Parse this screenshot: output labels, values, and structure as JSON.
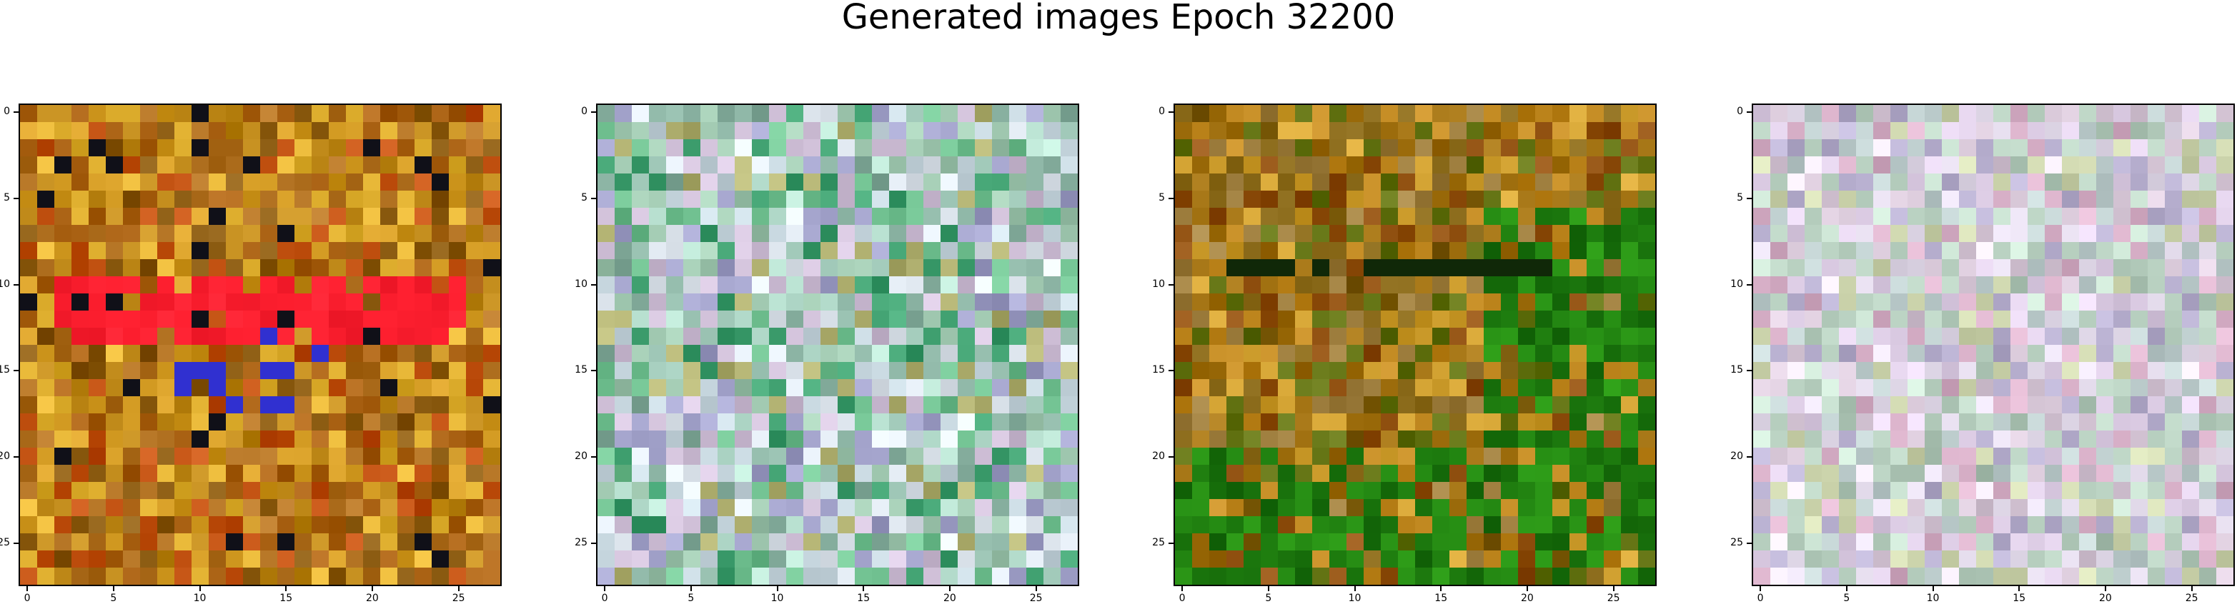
{
  "suptitle": "Generated images Epoch 32200",
  "chart_data": [
    {
      "type": "heatmap",
      "grid_size": [
        28,
        28
      ],
      "xticks": [
        0,
        5,
        10,
        15,
        20,
        25
      ],
      "yticks": [
        0,
        5,
        10,
        15,
        20,
        25
      ],
      "palette": [
        "#c08a1a",
        "#a86012",
        "#d29a22",
        "#8a5a10",
        "#e0b030",
        "#b07020",
        "#c05010"
      ],
      "features": [
        {
          "kind": "band",
          "rows": [
            10,
            13
          ],
          "cols": [
            2,
            25
          ],
          "color": "#ff2030"
        },
        {
          "kind": "dark_spots",
          "color": "#101018"
        },
        {
          "kind": "blue_spots",
          "color": "#3030d0"
        }
      ],
      "seed": 11
    },
    {
      "type": "heatmap",
      "grid_size": [
        28,
        28
      ],
      "xticks": [
        0,
        5,
        10,
        15,
        20,
        25
      ],
      "yticks": [
        0,
        5,
        10,
        15,
        20,
        25
      ],
      "palette": [
        "#a0c8b0",
        "#c8d8e0",
        "#88b0a0",
        "#b8e0d0",
        "#d0c0d8",
        "#a0a0c8",
        "#70c090",
        "#e0e8f0",
        "#40a070",
        "#b0b070"
      ],
      "features": [],
      "seed": 23
    },
    {
      "type": "heatmap",
      "grid_size": [
        28,
        28
      ],
      "xticks": [
        0,
        5,
        10,
        15,
        20,
        25
      ],
      "yticks": [
        0,
        5,
        10,
        15,
        20,
        25
      ],
      "palette": [
        "#a07010",
        "#806010",
        "#c08820",
        "#607010",
        "#a08040",
        "#d0a030",
        "#905010"
      ],
      "features": [
        {
          "kind": "green_region",
          "color": "#208010"
        },
        {
          "kind": "dark_row",
          "rows": [
            9,
            9
          ],
          "cols": [
            3,
            22
          ],
          "color": "#102808"
        }
      ],
      "seed": 37
    },
    {
      "type": "heatmap",
      "grid_size": [
        28,
        28
      ],
      "xticks": [
        0,
        5,
        10,
        15,
        20,
        25
      ],
      "yticks": [
        0,
        5,
        10,
        15,
        20,
        25
      ],
      "palette": [
        "#d8c8d8",
        "#c0d0d0",
        "#e0d0e8",
        "#b0c8b8",
        "#d8b0c8",
        "#c8e0d0",
        "#e8e0f0",
        "#b8b0d0",
        "#d0d8b0"
      ],
      "features": [],
      "seed": 53
    }
  ]
}
